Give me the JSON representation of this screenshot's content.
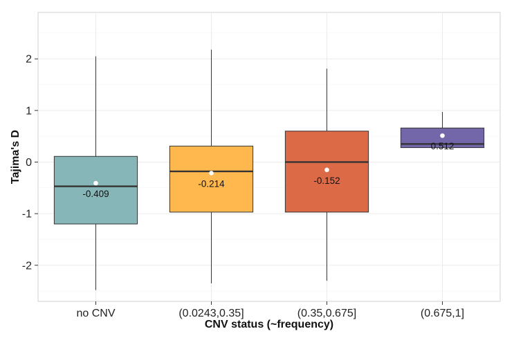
{
  "chart_data": {
    "type": "box",
    "title": "",
    "xlabel": "CNV status (~frequency)",
    "ylabel": "Tajima's D",
    "ylim": [
      -2.7,
      2.9
    ],
    "yticks": [
      -2,
      -1,
      0,
      1,
      2
    ],
    "grid": true,
    "legend": "none",
    "categories": [
      "no CNV",
      "(0.0243,0.35]",
      "(0.35,0.675]",
      "(0.675,1]"
    ],
    "boxes": [
      {
        "category": "no CNV",
        "whisker_low": -2.48,
        "q1": -1.2,
        "median": -0.47,
        "q3": 0.11,
        "whisker_high": 2.05,
        "mean": -0.409,
        "mean_label": "-0.409",
        "color": "#86b6b7"
      },
      {
        "category": "(0.0243,0.35]",
        "whisker_low": -2.35,
        "q1": -0.97,
        "median": -0.18,
        "q3": 0.31,
        "whisker_high": 2.18,
        "mean": -0.214,
        "mean_label": "-0.214",
        "color": "#ffb84d"
      },
      {
        "category": "(0.35,0.675]",
        "whisker_low": -2.3,
        "q1": -0.97,
        "median": 0.0,
        "q3": 0.6,
        "whisker_high": 1.81,
        "mean": -0.152,
        "mean_label": "-0.152",
        "color": "#dd6a47"
      },
      {
        "category": "(0.675,1]",
        "whisker_low": 0.28,
        "q1": 0.28,
        "median": 0.35,
        "q3": 0.66,
        "whisker_high": 0.97,
        "mean": 0.512,
        "mean_label": "0.512",
        "color": "#7467a9"
      }
    ]
  }
}
